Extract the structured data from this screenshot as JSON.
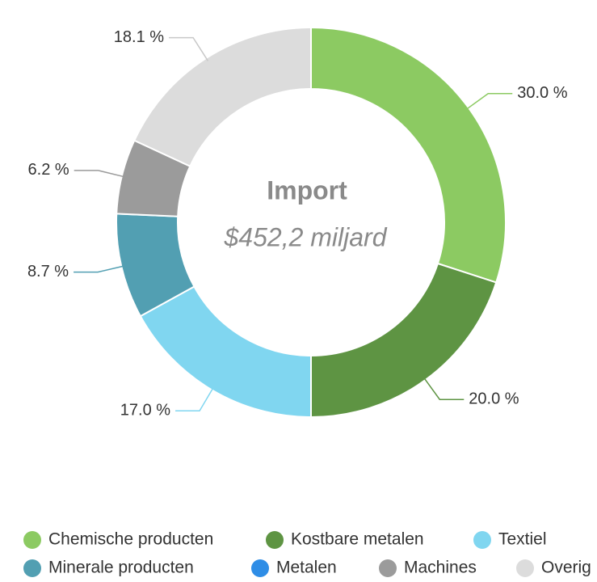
{
  "chart_data": {
    "type": "donut",
    "center_title": "Import",
    "center_subtitle": "$452,2 miljard",
    "categories": [
      "Chemische producten",
      "Kostbare metalen",
      "Textiel",
      "Minerale producten",
      "Metalen",
      "Machines",
      "Overig"
    ],
    "values": [
      30.0,
      20.0,
      17.0,
      8.7,
      null,
      6.2,
      18.1
    ],
    "value_labels": [
      "30.0 %",
      "20.0 %",
      "17.0 %",
      "8.7 %",
      null,
      "6.2 %",
      "18.1 %"
    ],
    "colors": [
      "#8cca62",
      "#5e9443",
      "#80d6f0",
      "#529fb2",
      "#2e8de6",
      "#9b9b9b",
      "#dcdcdc"
    ]
  }
}
